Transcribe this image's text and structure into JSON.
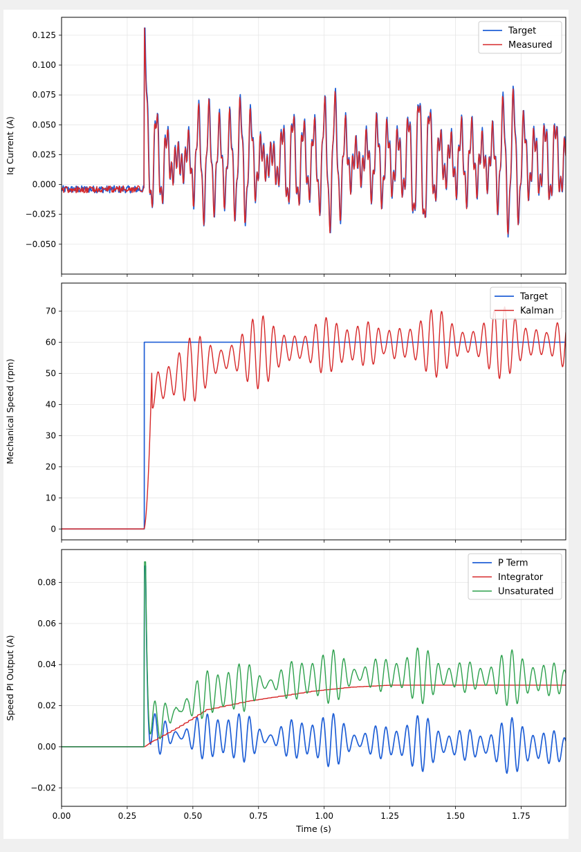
{
  "chart_data": [
    {
      "type": "line",
      "ylabel": "Iq Current (A)",
      "xlabel": "",
      "xlim": [
        0.0,
        1.92
      ],
      "ylim": [
        -0.075,
        0.14
      ],
      "grid": true,
      "legend": "top-right",
      "xticks": [
        0.0,
        0.25,
        0.5,
        0.75,
        1.0,
        1.25,
        1.5,
        1.75
      ],
      "yticks": [
        -0.05,
        -0.025,
        0.0,
        0.025,
        0.05,
        0.075,
        0.1,
        0.125
      ],
      "ytick_labels": [
        "−0.050",
        "−0.025",
        "0.000",
        "0.025",
        "0.050",
        "0.075",
        "0.100",
        "0.125"
      ],
      "series": [
        {
          "name": "Target",
          "color": "#1f5fd6",
          "width": 1.7
        },
        {
          "name": "Measured",
          "color": "#d62728",
          "width": 1.4
        }
      ],
      "segments": [
        {
          "t0": 0.0,
          "t1": 0.315,
          "form": "flat",
          "level": -0.004,
          "noise": 0.003
        },
        {
          "t0": 0.318,
          "t1": 1.92,
          "form": "oscillation",
          "mean": 0.02,
          "amp_min": 0.04,
          "amp_max": 0.065,
          "period": 0.04,
          "spike_at": 0.325,
          "spike": 0.13,
          "min": -0.065
        }
      ]
    },
    {
      "type": "line",
      "ylabel": "Mechanical Speed (rpm)",
      "xlabel": "",
      "xlim": [
        0.0,
        1.92
      ],
      "ylim": [
        -3.5,
        79
      ],
      "grid": true,
      "legend": "top-right",
      "xticks": [
        0.0,
        0.25,
        0.5,
        0.75,
        1.0,
        1.25,
        1.5,
        1.75
      ],
      "yticks": [
        0,
        10,
        20,
        30,
        40,
        50,
        60,
        70
      ],
      "ytick_labels": [
        "0",
        "10",
        "20",
        "30",
        "40",
        "50",
        "60",
        "70"
      ],
      "series": [
        {
          "name": "Target",
          "color": "#1f5fd6",
          "width": 1.7,
          "step_at": 0.315,
          "before": 0,
          "after": 60
        },
        {
          "name": "Kalman",
          "color": "#d62728",
          "width": 1.4
        }
      ],
      "segments": [
        {
          "t0": 0.0,
          "t1": 0.315,
          "form": "flat",
          "level": 0
        },
        {
          "t0": 0.315,
          "t1": 0.345,
          "form": "rise",
          "from": 0,
          "to": 55
        },
        {
          "t0": 0.345,
          "t1": 1.92,
          "form": "oscillation",
          "mean": 56,
          "target": 60,
          "amp_min": 4,
          "amp_max": 14,
          "period": 0.04,
          "max": 75,
          "min": 35.5
        }
      ]
    },
    {
      "type": "line",
      "ylabel": "Speed PI Output (A)",
      "xlabel": "Time (s)",
      "xlim": [
        0.0,
        1.92
      ],
      "ylim": [
        -0.029,
        0.096
      ],
      "grid": true,
      "legend": "top-right",
      "xticks": [
        0.0,
        0.25,
        0.5,
        0.75,
        1.0,
        1.25,
        1.5,
        1.75
      ],
      "xtick_labels": [
        "0.00",
        "0.25",
        "0.50",
        "0.75",
        "1.00",
        "1.25",
        "1.50",
        "1.75"
      ],
      "yticks": [
        -0.02,
        0.0,
        0.02,
        0.04,
        0.06,
        0.08
      ],
      "ytick_labels": [
        "−0.02",
        "0.00",
        "0.02",
        "0.04",
        "0.06",
        "0.08"
      ],
      "series": [
        {
          "name": "P Term",
          "color": "#1f5fd6",
          "width": 1.7
        },
        {
          "name": "Integrator",
          "color": "#d62728",
          "width": 1.4
        },
        {
          "name": "Unsaturated",
          "color": "#2ca04c",
          "width": 1.4
        }
      ],
      "segments": [
        {
          "series": "Integrator",
          "points": [
            [
              0.0,
              0.0
            ],
            [
              0.315,
              0.0
            ],
            [
              0.35,
              0.003
            ],
            [
              0.45,
              0.01
            ],
            [
              0.55,
              0.018
            ],
            [
              0.7,
              0.022
            ],
            [
              0.8,
              0.024
            ],
            [
              0.95,
              0.027
            ],
            [
              1.1,
              0.029
            ],
            [
              1.25,
              0.03
            ],
            [
              1.92,
              0.03
            ]
          ]
        },
        {
          "series": "P Term",
          "form": "oscillation",
          "mean": 0.005,
          "amp_min": 0.006,
          "amp_max": 0.02,
          "period": 0.04,
          "spike_at": 0.32,
          "spike": 0.088,
          "min": -0.024
        },
        {
          "series": "Unsaturated",
          "form": "integrator_plus_p",
          "spike_at": 0.32,
          "spike": 0.09,
          "max": 0.054
        }
      ]
    }
  ]
}
